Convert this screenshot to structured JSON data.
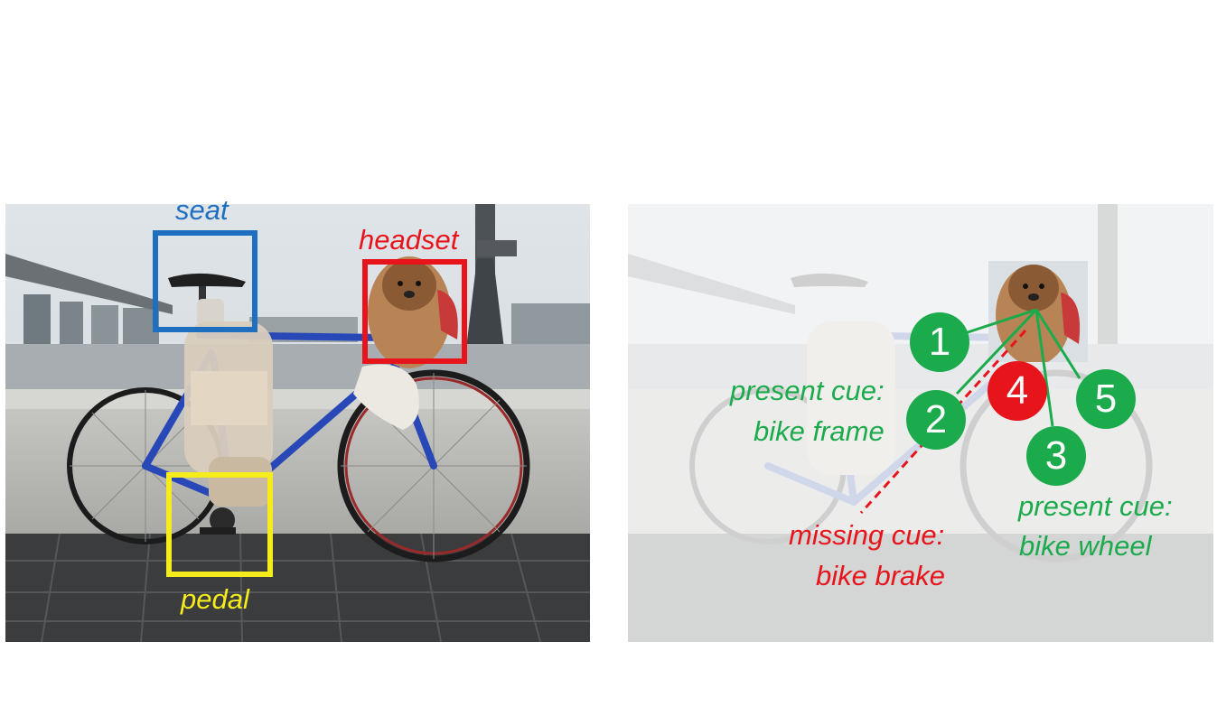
{
  "colors": {
    "seat": "#1f6fc0",
    "headset": "#e8141c",
    "pedal": "#f7ec1b",
    "present": "#1bab4c",
    "missing": "#e8141c"
  },
  "left": {
    "labels": {
      "seat": "seat",
      "headset": "headset",
      "pedal": "pedal"
    }
  },
  "right": {
    "markers": [
      {
        "num": "1",
        "status": "present"
      },
      {
        "num": "2",
        "status": "present"
      },
      {
        "num": "3",
        "status": "present"
      },
      {
        "num": "4",
        "status": "missing"
      },
      {
        "num": "5",
        "status": "present"
      }
    ],
    "cues": {
      "frame_line1": "present cue:",
      "frame_line2": "bike frame",
      "wheel_line1": "present cue:",
      "wheel_line2": "bike wheel",
      "brake_line1": "missing cue:",
      "brake_line2": "bike brake"
    }
  }
}
